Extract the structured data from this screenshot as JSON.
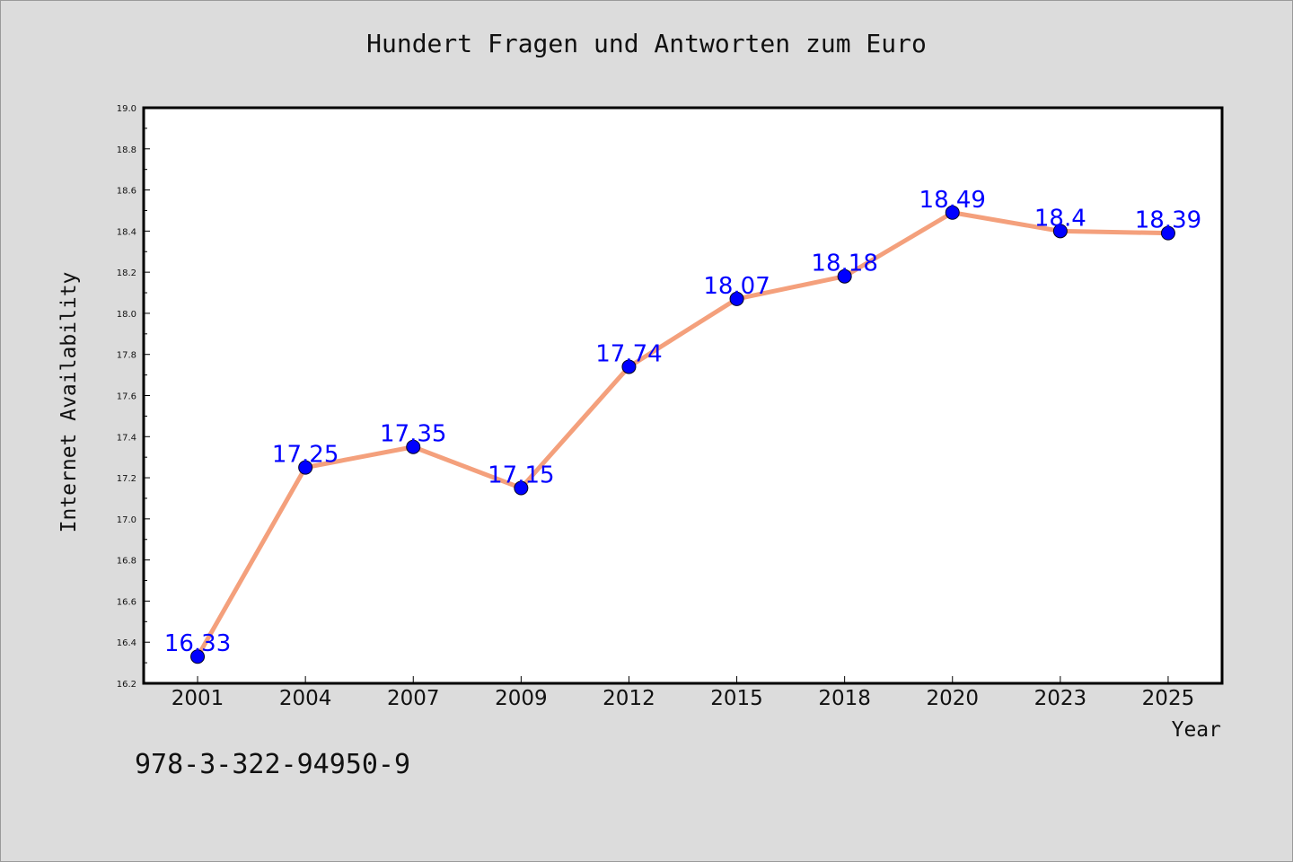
{
  "chart_data": {
    "type": "line",
    "title": "Hundert Fragen und Antworten zum Euro",
    "xlabel": "Year",
    "ylabel": "Internet Availability",
    "categories": [
      "2001",
      "2004",
      "2007",
      "2009",
      "2012",
      "2015",
      "2018",
      "2020",
      "2023",
      "2025"
    ],
    "series": [
      {
        "values": [
          16.33,
          17.25,
          17.35,
          17.15,
          17.74,
          18.07,
          18.18,
          18.49,
          18.4,
          18.39
        ],
        "data_labels": [
          "16.33",
          "17.25",
          "17.35",
          "17.15",
          "17.74",
          "18.07",
          "18.18",
          "18.49",
          "18.4",
          "18.39"
        ],
        "line_color": "#f4a07c",
        "marker_color": "#0000ff"
      }
    ],
    "ylim": [
      16.2,
      19.0
    ],
    "yticks": [
      "16.2",
      "16.4",
      "16.6",
      "16.8",
      "17.0",
      "17.2",
      "17.4",
      "17.6",
      "17.8",
      "18.0",
      "18.2",
      "18.4",
      "18.6",
      "18.8",
      "19.0"
    ],
    "grid": false,
    "legend": "none"
  },
  "footer": {
    "isbn": "978-3-322-94950-9"
  }
}
